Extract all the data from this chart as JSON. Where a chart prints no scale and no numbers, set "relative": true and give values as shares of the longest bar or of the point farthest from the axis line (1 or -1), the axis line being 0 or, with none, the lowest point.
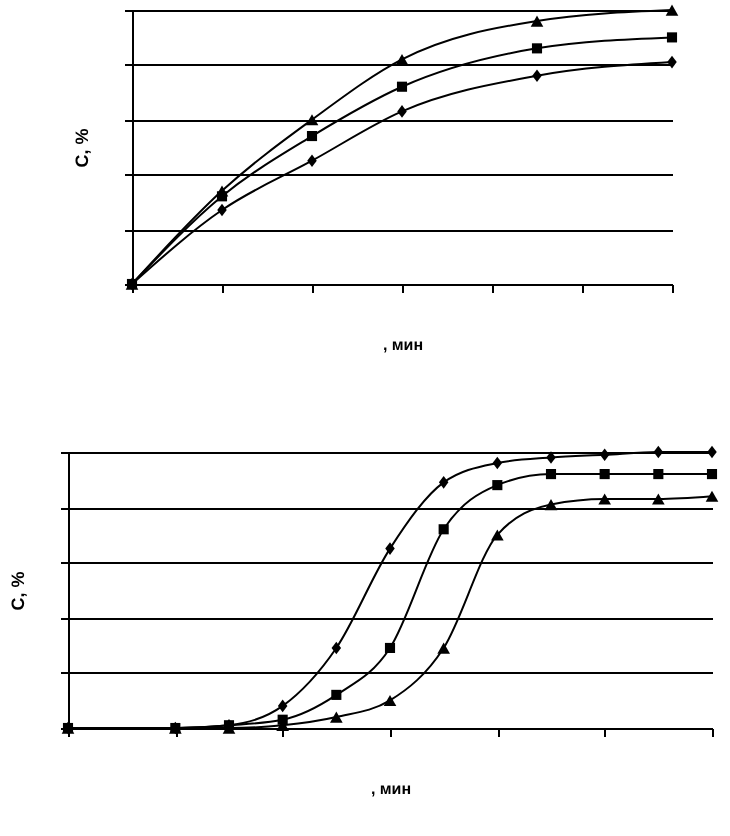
{
  "chart_data": [
    {
      "type": "line",
      "relative": true,
      "ylabel": "C, %",
      "xlabel": ", мин",
      "grid": "y",
      "line_style": "solid",
      "categories": [
        null,
        null,
        null,
        null,
        null,
        null,
        null,
        null,
        null,
        null,
        null,
        null,
        null
      ],
      "series": [
        {
          "color": "#000000",
          "marker": "diamond",
          "values": [
            0,
            null,
            0.27,
            null,
            0.45,
            null,
            0.63,
            null,
            null,
            0.76,
            null,
            null,
            0.81
          ]
        },
        {
          "color": "#000000",
          "marker": "square",
          "values": [
            0,
            null,
            0.32,
            null,
            0.54,
            null,
            0.72,
            null,
            null,
            0.86,
            null,
            null,
            0.9
          ]
        },
        {
          "color": "#000000",
          "marker": "triangle",
          "values": [
            0,
            null,
            0.34,
            null,
            0.6,
            null,
            0.82,
            null,
            null,
            0.96,
            null,
            null,
            1
          ]
        }
      ]
    },
    {
      "type": "line",
      "relative": true,
      "ylabel": "C, %",
      "xlabel": ", мин",
      "grid": "y",
      "line_style": "solid",
      "categories": [
        null,
        null,
        null,
        null,
        null,
        null,
        null,
        null,
        null,
        null,
        null,
        null,
        null
      ],
      "series": [
        {
          "color": "#000000",
          "marker": "diamond",
          "values": [
            0,
            null,
            0,
            0.01,
            0.08,
            0.29,
            0.65,
            0.89,
            0.96,
            0.98,
            0.99,
            1,
            1
          ]
        },
        {
          "color": "#000000",
          "marker": "square",
          "values": [
            0,
            null,
            0,
            0.01,
            0.03,
            0.12,
            0.29,
            0.72,
            0.88,
            0.92,
            0.92,
            0.92,
            0.92
          ]
        },
        {
          "color": "#000000",
          "marker": "triangle",
          "values": [
            0,
            null,
            0,
            0,
            0.01,
            0.04,
            0.1,
            0.29,
            0.7,
            0.81,
            0.83,
            0.83,
            0.84
          ]
        }
      ]
    }
  ]
}
